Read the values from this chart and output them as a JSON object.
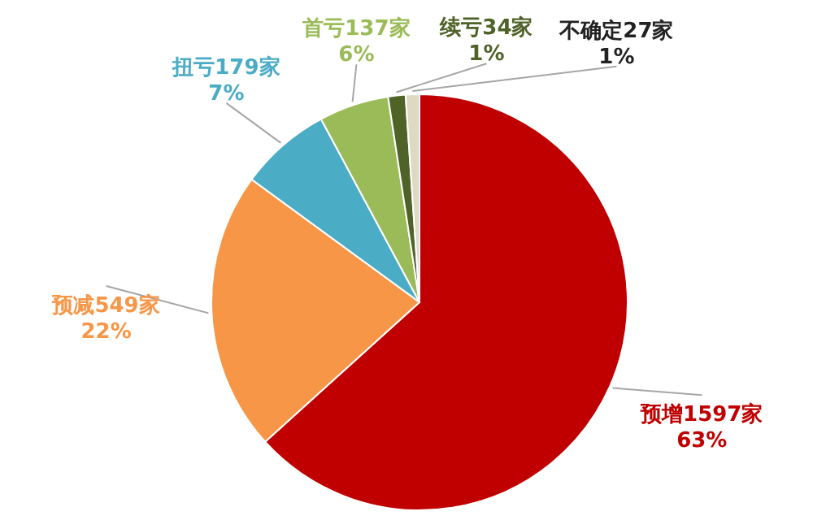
{
  "chart_data": {
    "type": "pie",
    "categories": [
      "预增",
      "预减",
      "扭亏",
      "首亏",
      "续亏",
      "不确定"
    ],
    "values": [
      1597,
      549,
      179,
      137,
      34,
      27
    ],
    "value_labels": [
      "1597家\n63%",
      "549家\n22%",
      "179家\n7%",
      "137家\n6%",
      "34家\n1%",
      "27家\n1%"
    ],
    "colors": [
      "#c00000",
      "#f79646",
      "#4bacc6",
      "#9bbb59",
      "#4f6228",
      "#ddd9c3"
    ]
  }
}
